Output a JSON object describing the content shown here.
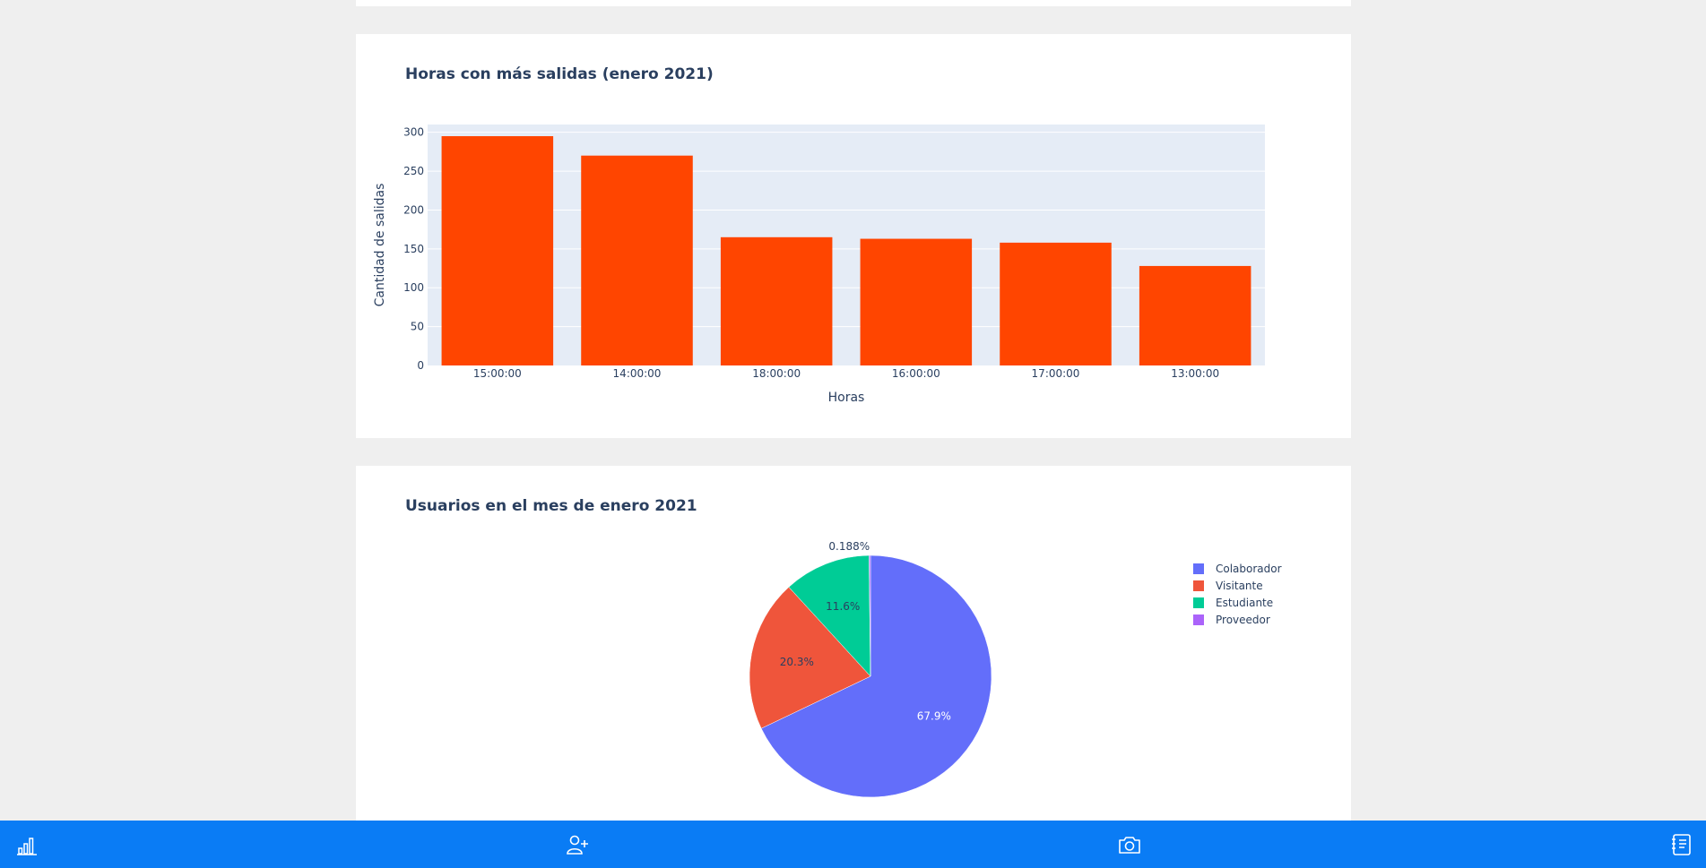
{
  "bar_card": {
    "title": "Horas con más salidas (enero 2021)"
  },
  "pie_card": {
    "title": "Usuarios en el mes de enero 2021"
  },
  "chart_data": [
    {
      "type": "bar",
      "title": "Horas con más salidas (enero 2021)",
      "categories": [
        "15:00:00",
        "14:00:00",
        "18:00:00",
        "16:00:00",
        "17:00:00",
        "13:00:00"
      ],
      "values": [
        295,
        270,
        165,
        163,
        158,
        128
      ],
      "xlabel": "Horas",
      "ylabel": "Cantidad de salidas",
      "ylim": [
        0,
        310
      ],
      "yticks": [
        0,
        50,
        100,
        150,
        200,
        250,
        300
      ],
      "bar_color": "#ff4500",
      "plot_bg": "#e5ecf6",
      "grid": true
    },
    {
      "type": "pie",
      "title": "Usuarios en el mes de enero 2021",
      "labels": [
        "Colaborador",
        "Visitante",
        "Estudiante",
        "Proveedor"
      ],
      "values": [
        67.9,
        20.3,
        11.6,
        0.188
      ],
      "text_labels": [
        "67.9%",
        "20.3%",
        "11.6%",
        "0.188%"
      ],
      "colors": [
        "#636efa",
        "#ef553b",
        "#00cc96",
        "#ab63fa"
      ],
      "legend_position": "top-right"
    }
  ],
  "bottom_nav": {
    "background": "#0a7cf5",
    "items": [
      {
        "name": "chart-icon"
      },
      {
        "name": "add-user-icon"
      },
      {
        "name": "camera-icon"
      },
      {
        "name": "notebook-icon"
      }
    ]
  }
}
